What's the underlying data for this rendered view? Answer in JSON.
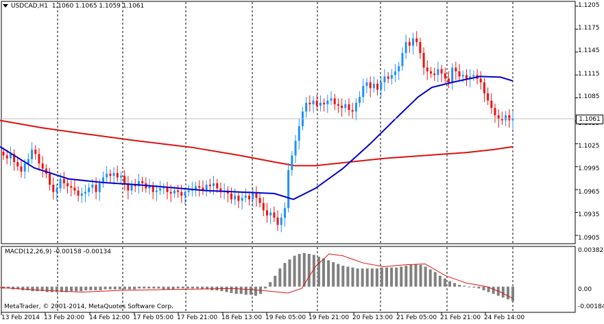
{
  "window": {
    "dropdown_icon": "triangle-down-icon",
    "symbol": "USDCAD,H1",
    "ohlc": "1.1060 1.1065 1.1059 1.1061"
  },
  "price_axis": {
    "ticks": [
      "1.1205",
      "1.1175",
      "1.1145",
      "1.1115",
      "1.1085",
      "1.1055",
      "1.1025",
      "1.0995",
      "1.0965",
      "1.0935",
      "1.0905"
    ],
    "current_price": "1.1061"
  },
  "macd": {
    "label": "MACD(12,26,9) -0.00158 -0.00134",
    "ticks": [
      "0.00382",
      "0.00",
      "-0.00184"
    ]
  },
  "copyright": "MetaTrader, © 2001-2014, MetaQuotes Software Corp.",
  "time_axis": [
    "13 Feb 2014",
    "13 Feb 20:00",
    "14 Feb 12:00",
    "17 Feb 05:00",
    "17 Feb 21:00",
    "18 Feb 13:00",
    "19 Feb 05:00",
    "19 Feb 21:00",
    "20 Feb 13:00",
    "21 Feb 05:00",
    "21 Feb 21:00",
    "24 Feb 14:00"
  ],
  "colors": {
    "bull": "#1e90ff",
    "bear": "#ee1111",
    "ma_fast": "#0000cc",
    "ma_slow": "#dd1111",
    "macd_hist": "#808080",
    "macd_signal": "#dd1111"
  },
  "chart_data": {
    "type": "candlestick",
    "ylim": [
      1.0895,
      1.1215
    ],
    "price_start": 1.1015,
    "candle_closes": [
      1.101,
      1.1006,
      1.1012,
      1.1001,
      1.0995,
      1.0988,
      1.0999,
      1.1005,
      1.1018,
      1.1012,
      1.0999,
      1.0992,
      1.0985,
      1.097,
      1.096,
      1.0965,
      1.0978,
      1.0972,
      1.0968,
      1.0966,
      1.0962,
      1.0955,
      1.0958,
      1.096,
      1.0966,
      1.097,
      1.096,
      1.0972,
      1.098,
      1.0985,
      1.0982,
      1.0986,
      1.098,
      1.0982,
      1.0972,
      1.0962,
      1.097,
      1.0968,
      1.0975,
      1.0972,
      1.0965,
      1.0968,
      1.096,
      1.0962,
      1.0965,
      1.0966,
      1.096,
      1.0958,
      1.0962,
      1.096,
      1.0955,
      1.096,
      1.0962,
      1.0964,
      1.0968,
      1.0966,
      1.0962,
      1.097,
      1.0968,
      1.0972,
      1.0965,
      1.096,
      1.0962,
      1.0958,
      1.095,
      1.0955,
      1.0948,
      1.0952,
      1.0955,
      1.095,
      1.0958,
      1.0952,
      1.0945,
      1.0935,
      1.0928,
      1.0932,
      1.0925,
      1.0915,
      1.0925,
      1.0938,
      1.099,
      1.101,
      1.103,
      1.105,
      1.107,
      1.1082,
      1.108,
      1.1085,
      1.1078,
      1.1082,
      1.108,
      1.1085,
      1.1088,
      1.108,
      1.1078,
      1.1075,
      1.108,
      1.1072,
      1.107,
      1.1082,
      1.109,
      1.1105,
      1.111,
      1.1102,
      1.1108,
      1.11,
      1.111,
      1.1118,
      1.1115,
      1.112,
      1.1125,
      1.1132,
      1.115,
      1.1165,
      1.116,
      1.117,
      1.1165,
      1.115,
      1.113,
      1.1125,
      1.1122,
      1.112,
      1.1128,
      1.1122,
      1.1115,
      1.111,
      1.113,
      1.1125,
      1.1118,
      1.112,
      1.1115,
      1.1118,
      1.112,
      1.1115,
      1.111,
      1.1095,
      1.1085,
      1.1075,
      1.1065,
      1.106,
      1.1058,
      1.1065,
      1.1058,
      1.1061
    ],
    "ma_fast": [
      [
        0,
        1.1022
      ],
      [
        50,
        1.0993
      ],
      [
        100,
        1.0978
      ],
      [
        150,
        1.0973
      ],
      [
        200,
        1.097
      ],
      [
        250,
        1.0966
      ],
      [
        300,
        1.0962
      ],
      [
        350,
        1.096
      ],
      [
        400,
        1.0958
      ],
      [
        428,
        1.095
      ],
      [
        460,
        1.0965
      ],
      [
        500,
        1.0992
      ],
      [
        540,
        1.1026
      ],
      [
        580,
        1.1063
      ],
      [
        610,
        1.109
      ],
      [
        630,
        1.1103
      ],
      [
        660,
        1.111
      ],
      [
        700,
        1.1118
      ],
      [
        730,
        1.1117
      ],
      [
        748,
        1.1112
      ]
    ],
    "ma_slow": [
      [
        0,
        1.1058
      ],
      [
        60,
        1.1048
      ],
      [
        120,
        1.104
      ],
      [
        200,
        1.103
      ],
      [
        280,
        1.1021
      ],
      [
        350,
        1.101
      ],
      [
        400,
        1.1001
      ],
      [
        430,
        1.0996
      ],
      [
        460,
        1.0996
      ],
      [
        500,
        1.1
      ],
      [
        560,
        1.1006
      ],
      [
        620,
        1.101
      ],
      [
        680,
        1.1014
      ],
      [
        720,
        1.1018
      ],
      [
        748,
        1.1022
      ]
    ],
    "macd_ylim": [
      -0.0026,
      0.0042
    ],
    "macd_hist": [
      -0.0002,
      -0.0002,
      -0.0003,
      -0.0003,
      -0.0004,
      -0.0004,
      -0.0005,
      -0.0005,
      -0.0005,
      -0.0006,
      -0.0006,
      -0.0006,
      -0.0006,
      -0.0006,
      -0.0005,
      -0.0005,
      -0.0005,
      -0.0004,
      -0.0004,
      -0.0004,
      -0.0004,
      -0.0003,
      -0.0003,
      -0.0003,
      -0.0003,
      -0.0003,
      -0.0003,
      -0.0003,
      -0.0002,
      -0.0002,
      -0.0002,
      -0.0002,
      -0.0002,
      -0.0003,
      -0.0003,
      -0.0003,
      -0.0002,
      -0.0002,
      -0.0002,
      -0.0002,
      -0.0002,
      -0.0003,
      -0.0003,
      -0.0004,
      -0.0004,
      -0.0005,
      -0.0006,
      -0.0007,
      -0.0008,
      -0.0008,
      -0.0009,
      -0.0009,
      -0.001,
      -0.0008,
      -0.0002,
      0.0005,
      0.0012,
      0.002,
      0.0026,
      0.003,
      0.0034,
      0.0036,
      0.0037,
      0.0036,
      0.0035,
      0.0033,
      0.0031,
      0.0029,
      0.0027,
      0.0025,
      0.0023,
      0.0022,
      0.0021,
      0.002,
      0.002,
      0.002,
      0.002,
      0.002,
      0.0021,
      0.0021,
      0.0021,
      0.0021,
      0.0022,
      0.0023,
      0.0024,
      0.0025,
      0.0024,
      0.0022,
      0.0019,
      0.0016,
      0.0012,
      0.0009,
      0.0006,
      0.0004,
      0.0002,
      0.0001,
      0.0,
      -0.0001,
      -0.0002,
      -0.0004,
      -0.0006,
      -0.0008,
      -0.001,
      -0.0012,
      -0.0014,
      -0.0016
    ],
    "macd_signal": [
      [
        0,
        -0.0001
      ],
      [
        60,
        -0.0004
      ],
      [
        120,
        -0.0006
      ],
      [
        180,
        -0.0004
      ],
      [
        260,
        -0.0003
      ],
      [
        340,
        -0.0002
      ],
      [
        380,
        -0.0004
      ],
      [
        420,
        -0.0007
      ],
      [
        440,
        -0.0002
      ],
      [
        460,
        0.0022
      ],
      [
        480,
        0.0036
      ],
      [
        500,
        0.0034
      ],
      [
        530,
        0.0026
      ],
      [
        560,
        0.0022
      ],
      [
        590,
        0.0024
      ],
      [
        620,
        0.0025
      ],
      [
        650,
        0.0012
      ],
      [
        680,
        0.0004
      ],
      [
        710,
        0.0
      ],
      [
        730,
        -0.0006
      ],
      [
        748,
        -0.0013
      ]
    ]
  }
}
